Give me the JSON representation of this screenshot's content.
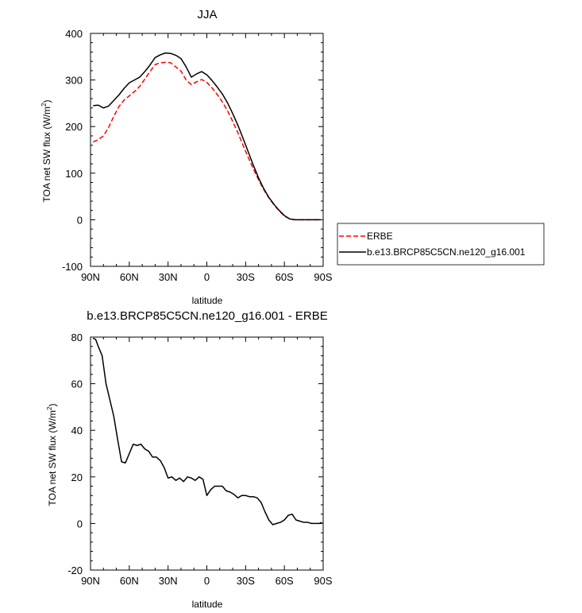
{
  "chart_data": [
    {
      "type": "line",
      "title": "JJA",
      "xlabel": "latitude",
      "ylabel": "TOA net SW flux (W/m",
      "ylabel_sup": "2",
      "ylabel_close": ")",
      "xlim": [
        90,
        -90
      ],
      "ylim": [
        -100,
        400
      ],
      "xticks": [
        90,
        60,
        30,
        0,
        -30,
        -60,
        -90
      ],
      "xtick_labels": [
        "90N",
        "60N",
        "30N",
        "0",
        "30S",
        "60S",
        "90S"
      ],
      "yticks": [
        -100,
        0,
        100,
        200,
        300,
        400
      ],
      "ytick_labels": [
        "-100",
        "0",
        "100",
        "200",
        "300",
        "400"
      ],
      "grid": false,
      "legend": "right",
      "series": [
        {
          "name": "ERBE",
          "color": "#ff0000",
          "dash": "dashed",
          "x": [
            88,
            84,
            80,
            76,
            72,
            68,
            64,
            60,
            56,
            52,
            48,
            44,
            40,
            36,
            32,
            28,
            24,
            20,
            16,
            12,
            8,
            4,
            0,
            -4,
            -8,
            -12,
            -16,
            -20,
            -24,
            -28,
            -32,
            -36,
            -40,
            -44,
            -48,
            -52,
            -56,
            -60,
            -64,
            -68,
            -72,
            -76,
            -80,
            -84,
            -88
          ],
          "values": [
            167,
            172,
            180,
            198,
            222,
            243,
            257,
            266,
            275,
            286,
            302,
            318,
            333,
            337,
            338,
            337,
            328,
            319,
            300,
            290,
            296,
            301,
            295,
            283,
            269,
            253,
            234,
            211,
            187,
            160,
            134,
            109,
            86,
            65,
            47,
            32,
            19,
            8,
            2,
            0,
            0,
            0,
            0,
            0,
            0
          ]
        },
        {
          "name": "b.e13.BRCP85C5CN.ne120_g16.001",
          "color": "#000000",
          "dash": "solid",
          "x": [
            88,
            84,
            80,
            76,
            72,
            68,
            64,
            60,
            56,
            52,
            48,
            44,
            40,
            36,
            32,
            28,
            24,
            20,
            16,
            12,
            8,
            4,
            0,
            -4,
            -8,
            -12,
            -16,
            -20,
            -24,
            -28,
            -32,
            -36,
            -40,
            -44,
            -48,
            -52,
            -56,
            -60,
            -64,
            -68,
            -72,
            -76,
            -80,
            -84,
            -88
          ],
          "values": [
            245,
            246,
            240,
            244,
            256,
            268,
            282,
            294,
            300,
            306,
            318,
            332,
            348,
            354,
            358,
            357,
            353,
            346,
            328,
            306,
            313,
            318,
            311,
            299,
            285,
            270,
            251,
            228,
            203,
            175,
            146,
            117,
            90,
            67,
            48,
            33,
            20,
            9,
            2,
            0,
            0,
            0,
            0,
            0,
            0
          ]
        }
      ],
      "legend_entries": [
        "ERBE",
        "b.e13.BRCP85C5CN.ne120_g16.001"
      ]
    },
    {
      "type": "line",
      "title": "b.e13.BRCP85C5CN.ne120_g16.001 - ERBE",
      "xlabel": "latitude",
      "ylabel": "TOA net SW flux (W/m",
      "ylabel_sup": "2",
      "ylabel_close": ")",
      "xlim": [
        90,
        -90
      ],
      "ylim": [
        -20,
        80
      ],
      "xticks": [
        90,
        60,
        30,
        0,
        -30,
        -60,
        -90
      ],
      "xtick_labels": [
        "90N",
        "60N",
        "30N",
        "0",
        "30S",
        "60S",
        "90S"
      ],
      "yticks": [
        -20,
        0,
        20,
        40,
        60,
        80
      ],
      "ytick_labels": [
        "-20",
        "0",
        "20",
        "40",
        "60",
        "80"
      ],
      "grid": false,
      "series": [
        {
          "color": "#000000",
          "dash": "solid",
          "x": [
            88,
            86,
            84,
            81,
            78,
            75,
            72,
            69,
            66,
            63,
            60,
            57,
            54,
            51,
            48,
            45,
            42,
            39,
            36,
            33,
            30,
            27,
            24,
            21,
            18,
            15,
            12,
            9,
            6,
            3,
            0,
            -3,
            -6,
            -9,
            -12,
            -15,
            -18,
            -21,
            -24,
            -27,
            -30,
            -33,
            -36,
            -39,
            -42,
            -45,
            -48,
            -51,
            -54,
            -57,
            -60,
            -63,
            -66,
            -69,
            -72,
            -75,
            -78,
            -81,
            -84,
            -87,
            -89
          ],
          "values": [
            79.5,
            79,
            76,
            72,
            60,
            53,
            46,
            36,
            26.5,
            26,
            30,
            34,
            33.5,
            34,
            32,
            31,
            28.5,
            28.5,
            27,
            24,
            19.5,
            20,
            18.5,
            19.5,
            18,
            20,
            19.5,
            18.5,
            20,
            19,
            12,
            14.5,
            16,
            16,
            16,
            14,
            13.5,
            12.5,
            11,
            12,
            12,
            11.5,
            11.5,
            11,
            9,
            5,
            1.5,
            -0.5,
            0,
            0.5,
            1.5,
            3.5,
            4,
            1.5,
            1,
            0.5,
            0.5,
            0,
            0,
            0,
            0.5
          ]
        }
      ]
    }
  ]
}
